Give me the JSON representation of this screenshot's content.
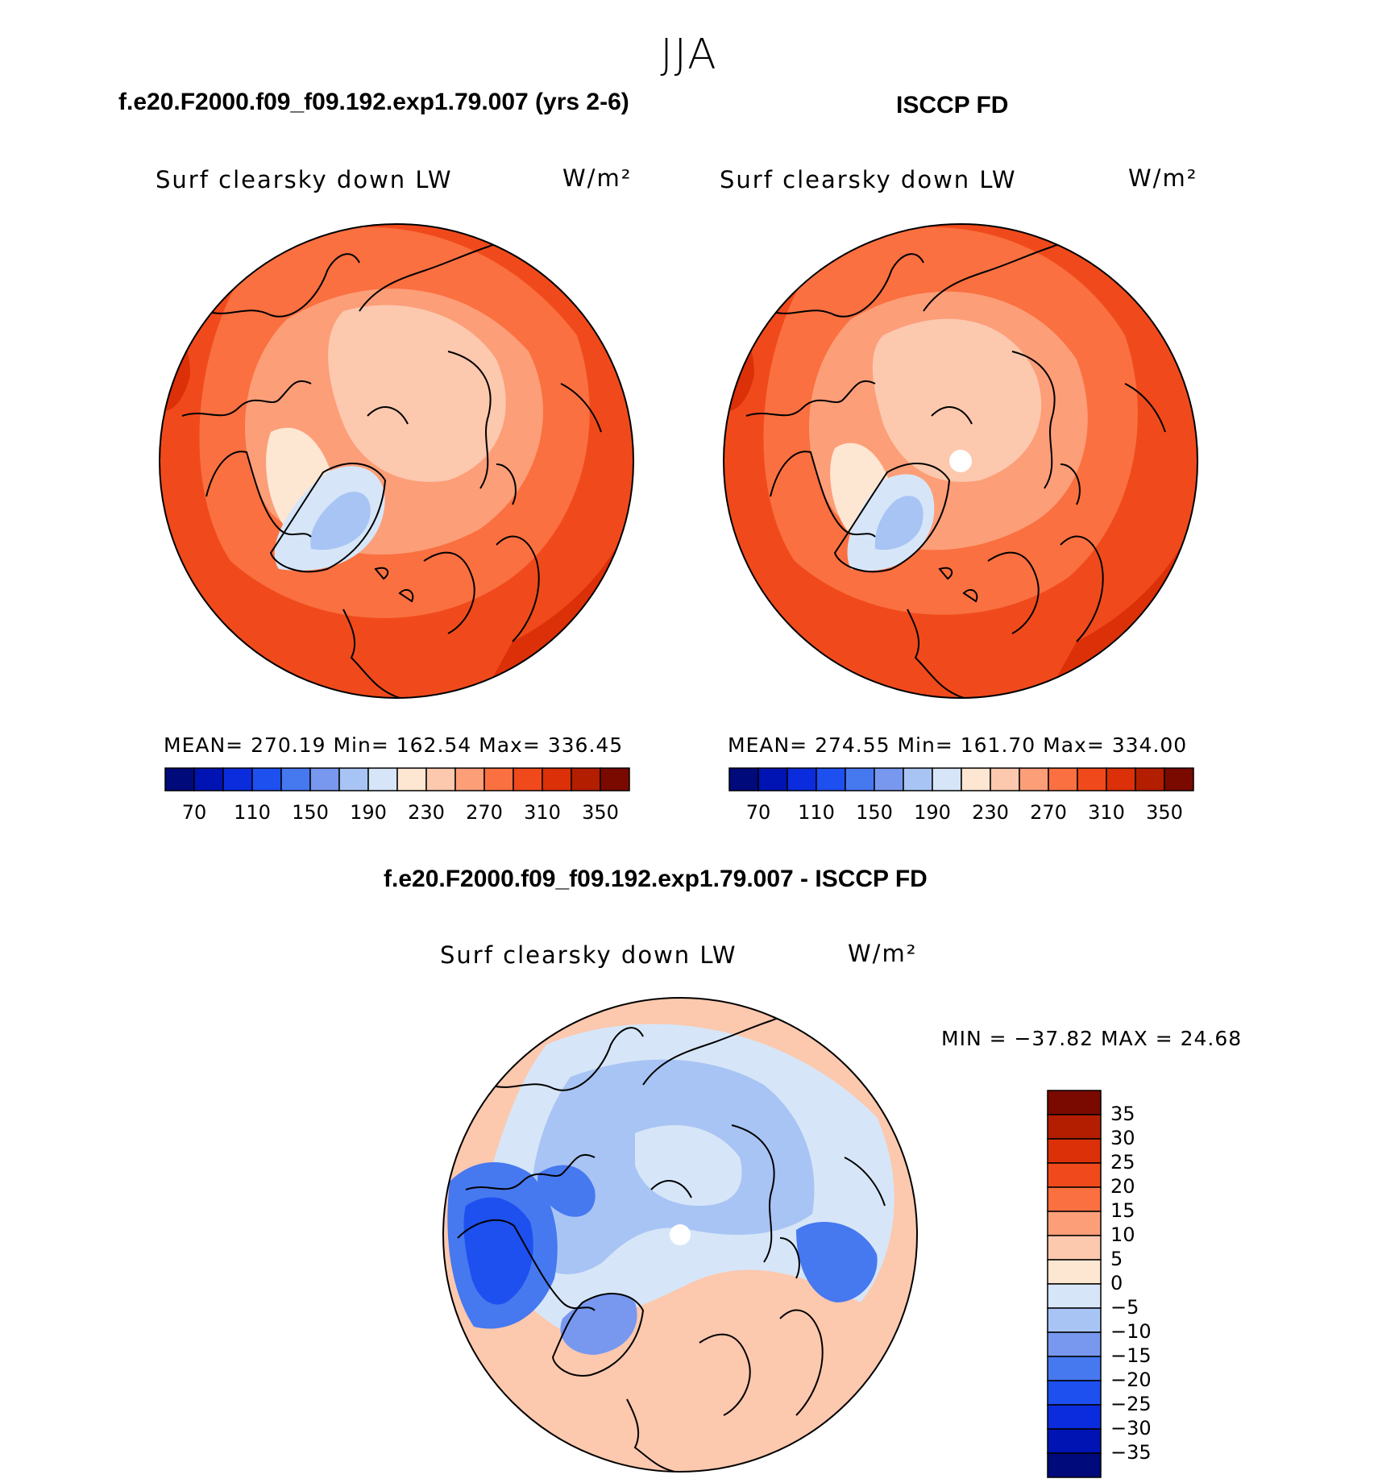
{
  "figure": {
    "season": "JJA",
    "diff_title": "f.e20.F2000.f09_f09.192.exp1.79.007 - ISCCP FD"
  },
  "colors": {
    "full_scale": [
      "#000a7a",
      "#0014b4",
      "#0a2cdc",
      "#1e50f0",
      "#4678f0",
      "#7898f0",
      "#a8c4f4",
      "#d6e6f8",
      "#fde6d2",
      "#fcc8ae",
      "#fc9e78",
      "#fa7040",
      "#f04a1c",
      "#dc3008",
      "#b41e00",
      "#7a0a00"
    ],
    "diff_scale": [
      "#000a7a",
      "#0014b4",
      "#0a2cdc",
      "#1e50f0",
      "#4678f0",
      "#7898f0",
      "#a8c4f4",
      "#d6e6f8",
      "#fde6d2",
      "#fcc8ae",
      "#fc9e78",
      "#fa7040",
      "#f04a1c",
      "#dc3008",
      "#b41e00",
      "#7a0a00"
    ]
  },
  "panels": [
    {
      "header": "f.e20.F2000.f09_f09.192.exp1.79.007 (yrs 2-6)",
      "variable": "Surf clearsky down LW",
      "units": "W/m²",
      "stats_text": "MEAN= 270.19   Min= 162.54   Max= 336.45",
      "stats": {
        "mean": 270.19,
        "min": 162.54,
        "max": 336.45
      },
      "ticks": [
        "70",
        "110",
        "150",
        "190",
        "230",
        "270",
        "310",
        "350"
      ],
      "pole_hole": false
    },
    {
      "header": "ISCCP FD",
      "variable": "Surf clearsky down LW",
      "units": "W/m²",
      "stats_text": "MEAN= 274.55   Min= 161.70   Max= 334.00",
      "stats": {
        "mean": 274.55,
        "min": 161.7,
        "max": 334.0
      },
      "ticks": [
        "70",
        "110",
        "150",
        "190",
        "230",
        "270",
        "310",
        "350"
      ],
      "pole_hole": true
    }
  ],
  "difference": {
    "variable": "Surf clearsky down LW",
    "units": "W/m²",
    "minmax_text": "MIN = −37.82 MAX =   24.68",
    "stats": {
      "min": -37.82,
      "max": 24.68
    },
    "ticks": [
      "35",
      "30",
      "25",
      "20",
      "15",
      "10",
      "5",
      "0",
      "−5",
      "−10",
      "−15",
      "−20",
      "−25",
      "−30",
      "−35"
    ]
  }
}
